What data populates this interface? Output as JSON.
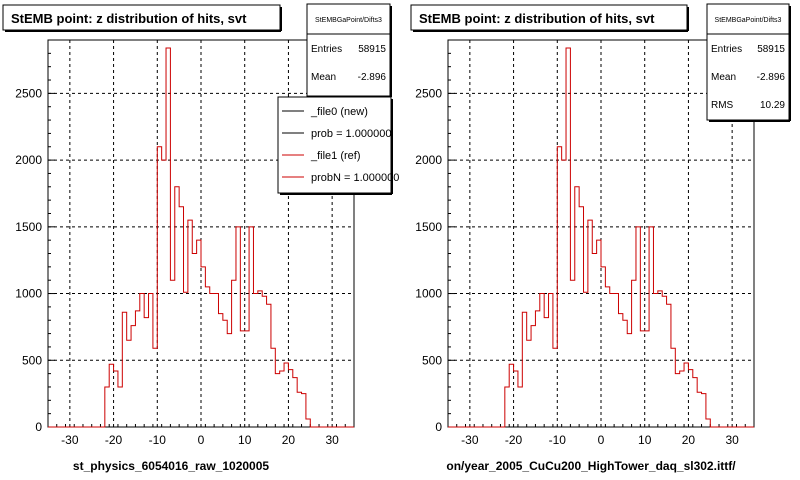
{
  "left": {
    "title": "StEMB point: z distribution of hits, svt",
    "stats": {
      "name": "StEMBGaPoint/Difts3",
      "entries_label": "Entries",
      "entries": "58915",
      "mean_label": "Mean",
      "mean": "-2.896"
    },
    "legend": [
      {
        "label": "_file0 (new)",
        "color": "#000000"
      },
      {
        "label": "prob = 1.000000",
        "color": "#000000"
      },
      {
        "label": "_file1 (ref)",
        "color": "#cc0000"
      },
      {
        "label": "probN = 1.000000",
        "color": "#cc0000"
      }
    ],
    "xlabel": "st_physics_6054016_raw_1020005"
  },
  "right": {
    "title": "StEMB point: z distribution of hits, svt",
    "stats": {
      "name": "StEMBGaPoint/Difts3",
      "entries_label": "Entries",
      "entries": "58915",
      "mean_label": "Mean",
      "mean": "-2.896",
      "rms_label": "RMS",
      "rms": "10.29"
    },
    "xlabel": "on/year_2005_CuCu200_HighTower_daq_sl302.ittf/"
  },
  "chart_data": {
    "type": "histogram",
    "xlim": [
      -35,
      35
    ],
    "ylim": [
      0,
      2900
    ],
    "x_ticks": [
      -30,
      -20,
      -10,
      0,
      10,
      20,
      30
    ],
    "y_ticks": [
      0,
      500,
      1000,
      1500,
      2000,
      2500
    ],
    "grid": true,
    "line_color": "#cc0000",
    "bin_edges_start": -22,
    "bin_width": 1,
    "values": [
      300,
      470,
      420,
      300,
      860,
      650,
      760,
      870,
      1000,
      820,
      1000,
      590,
      2100,
      2000,
      2840,
      1100,
      1800,
      1650,
      1010,
      1550,
      1300,
      1400,
      1200,
      1050,
      1000,
      1000,
      850,
      800,
      700,
      1100,
      1500,
      720,
      720,
      1500,
      1000,
      1020,
      980,
      920,
      590,
      400,
      420,
      480,
      430,
      370,
      260,
      250,
      60
    ],
    "underflow": 0
  }
}
